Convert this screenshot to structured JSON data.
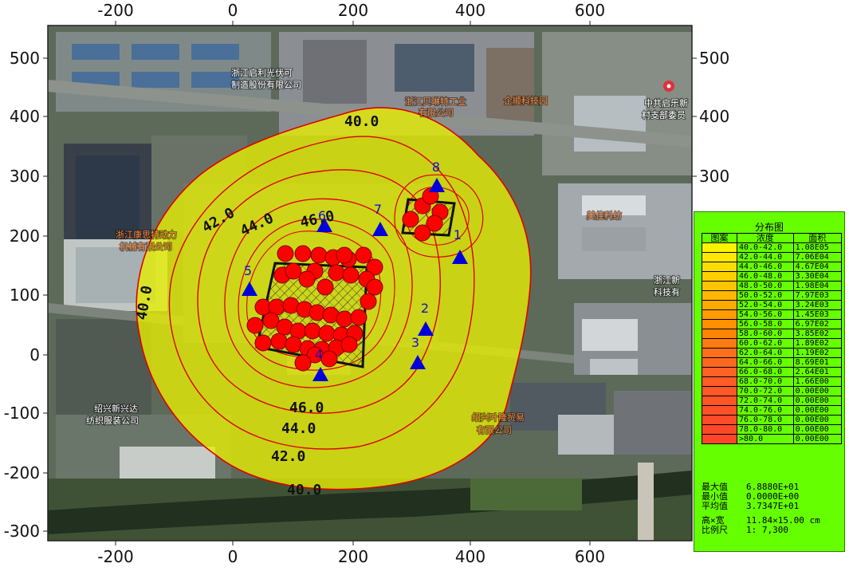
{
  "colors": {
    "plume_fill": "#e8f000",
    "contour_line": "#e00000",
    "source_fill": "#ff0000",
    "receptor_fill": "#0000dd",
    "legend_bg": "#66ff00"
  },
  "axes": {
    "x_ticks_top": [
      "-200",
      "0",
      "200",
      "400",
      "600"
    ],
    "x_ticks_bottom": [
      "-200",
      "0",
      "200",
      "400",
      "600"
    ],
    "y_ticks_left": [
      "500",
      "400",
      "300",
      "200",
      "100",
      "0",
      "-100",
      "-200",
      "-300"
    ],
    "y_ticks_right": [
      "500",
      "400",
      "300"
    ],
    "x_range": [
      -310,
      770
    ],
    "y_range": [
      -310,
      550
    ]
  },
  "contour_labels": [
    "40.0",
    "42.0",
    "44.0",
    "46.0",
    "40.0",
    "46.0",
    "44.0",
    "42.0",
    "40.0"
  ],
  "receptors": [
    "1",
    "2",
    "3",
    "4",
    "5",
    "6",
    "7",
    "8"
  ],
  "map_labels": {
    "company_top": "浙江启利光伏可",
    "company_top2": "制造股份有限公司",
    "company_mid": "浙江贝琳特工业",
    "company_mid2": "有限公司",
    "company_tech": "企顺科技园",
    "village": "中共启乐新",
    "village2": "村支部委员",
    "company_left": "浙江康思特动力",
    "company_left2": "机械有限公司",
    "company_bl": "绍兴新兴达",
    "company_bl2": "纺织服装公司",
    "company_br": "绍兴叶隆贸易",
    "company_br2": "有限公司",
    "meiju": "美佳科纺",
    "right_edge": "浙江新",
    "right_edge2": "科技有"
  },
  "legend": {
    "title": "分布图",
    "headers": [
      "图案",
      "浓度",
      "面积"
    ],
    "rows": [
      {
        "range": "40.0-42.0",
        "area": "1.08E05",
        "color": "#fff200"
      },
      {
        "range": "42.0-44.0",
        "area": "7.06E04",
        "color": "#ffe800"
      },
      {
        "range": "44.0-46.0",
        "area": "4.67E04",
        "color": "#ffdc00"
      },
      {
        "range": "46.0-48.0",
        "area": "3.30E04",
        "color": "#ffd000"
      },
      {
        "range": "48.0-50.0",
        "area": "1.98E04",
        "color": "#ffc400"
      },
      {
        "range": "50.0-52.0",
        "area": "7.97E03",
        "color": "#ffb800"
      },
      {
        "range": "52.0-54.0",
        "area": "3.24E03",
        "color": "#ffaa00"
      },
      {
        "range": "54.0-56.0",
        "area": "1.45E03",
        "color": "#ff9c00"
      },
      {
        "range": "56.0-58.0",
        "area": "6.97E02",
        "color": "#ff9000"
      },
      {
        "range": "58.0-60.0",
        "area": "3.85E02",
        "color": "#ff8400"
      },
      {
        "range": "60.0-62.0",
        "area": "1.89E02",
        "color": "#ff7a10"
      },
      {
        "range": "62.0-64.0",
        "area": "1.19E02",
        "color": "#ff7018"
      },
      {
        "range": "64.0-66.0",
        "area": "8.69E01",
        "color": "#ff6820"
      },
      {
        "range": "66.0-68.0",
        "area": "2.64E01",
        "color": "#ff6224"
      },
      {
        "range": "68.0-70.0",
        "area": "1.66E00",
        "color": "#ff5c28"
      },
      {
        "range": "70.0-72.0",
        "area": "0.00E00",
        "color": "#ff5828"
      },
      {
        "range": "72.0-74.0",
        "area": "0.00E00",
        "color": "#ff5428"
      },
      {
        "range": "74.0-76.0",
        "area": "0.00E00",
        "color": "#ff5028"
      },
      {
        "range": "76.0-78.0",
        "area": "0.00E00",
        "color": "#ff4c28"
      },
      {
        "range": "78.0-80.0",
        "area": "0.00E00",
        "color": "#ff4828"
      },
      {
        "range": ">80.0",
        "area": "0.00E00",
        "color": "#ff4428"
      }
    ],
    "max_label": "最大值",
    "max_value": "6.8880E+01",
    "min_label": "最小值",
    "min_value": "0.0000E+00",
    "avg_label": "平均值",
    "avg_value": "3.7347E+01",
    "size_label": "高×宽",
    "size_value": "11.84×15.00 cm",
    "scale_label": "比例尺",
    "scale_value": "1: 7,300"
  }
}
